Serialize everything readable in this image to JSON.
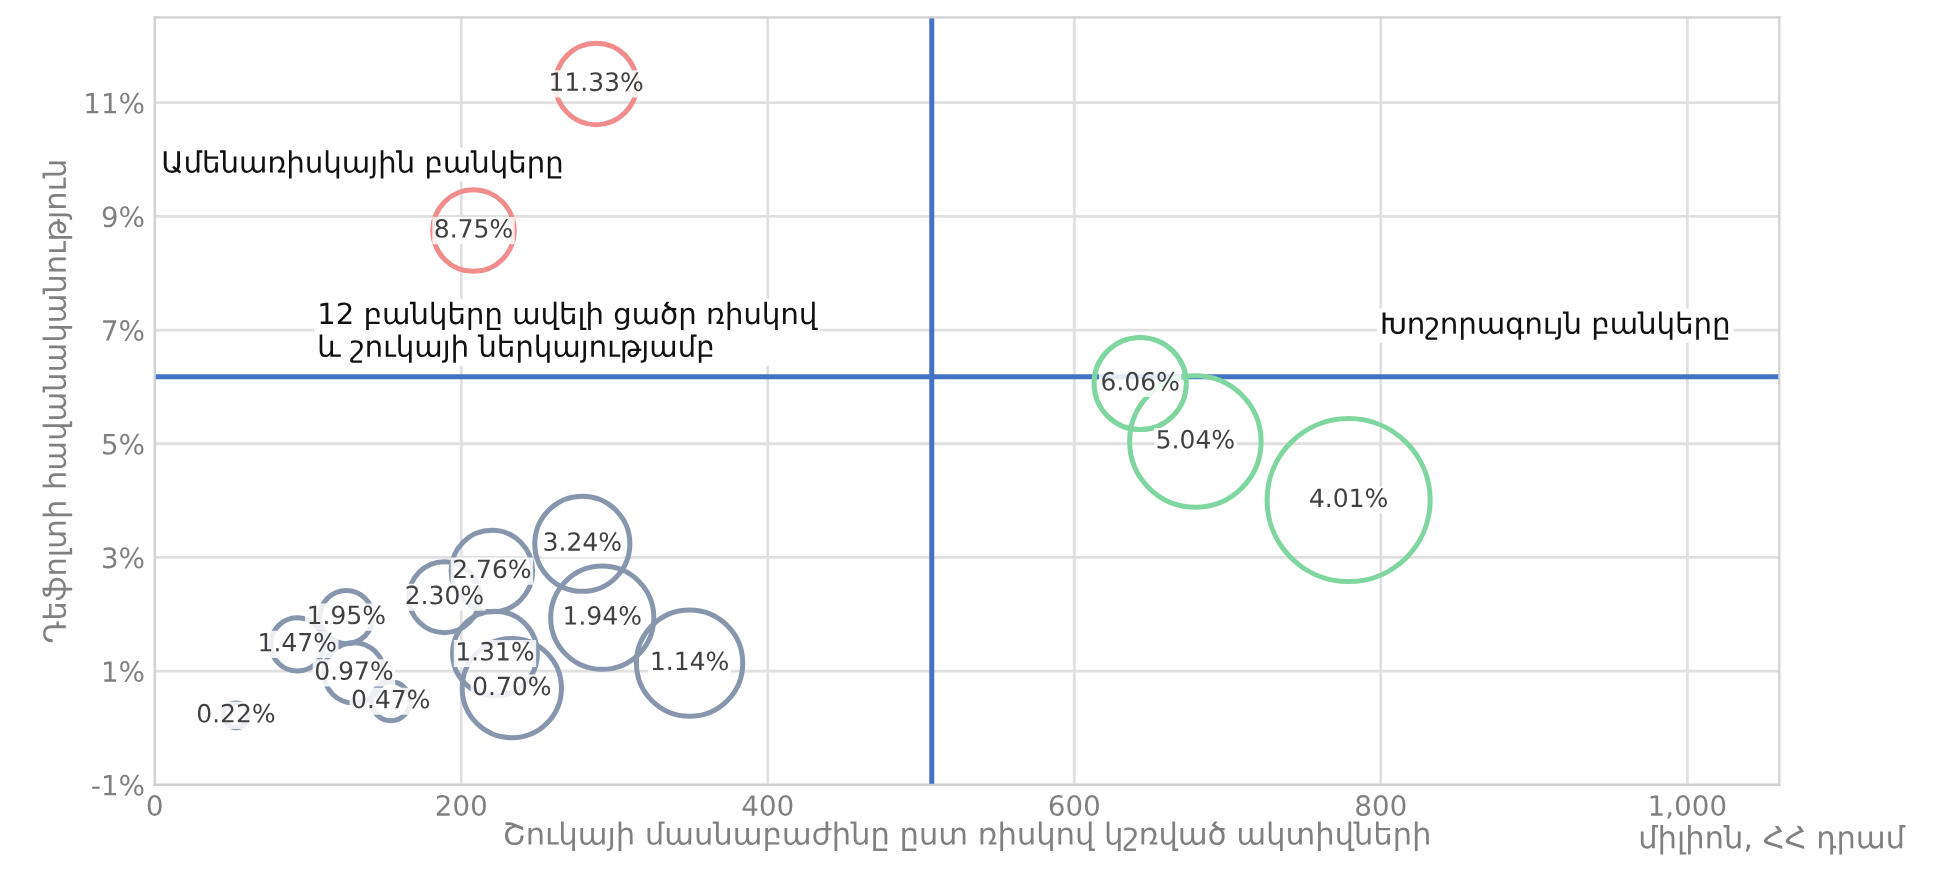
{
  "chart_data": {
    "type": "bubble",
    "xlabel": "Շուկայի մասնաբաժինը ըստ ռիսկով կշռված ակտիվների",
    "ylabel": "Դեֆոլտի հավանականություն",
    "series": [
      {
        "color": "#f08c8c",
        "x": [
          288,
          208
        ],
        "values": [
          11.33,
          8.75
        ],
        "sizes": [
          0.25,
          0.25
        ],
        "value_labels": [
          "11.33%",
          "8.75%"
        ]
      },
      {
        "color": "#7fd6a0",
        "x": [
          643,
          679,
          779
        ],
        "values": [
          6.06,
          5.04,
          4.01
        ],
        "sizes": [
          0.32,
          0.65,
          1
        ],
        "value_labels": [
          "6.06%",
          "5.04%",
          "4.01%"
        ]
      },
      {
        "color": "#8796ad",
        "x": [
          53,
          93,
          125,
          130,
          154,
          189,
          220,
          279,
          292,
          222,
          233,
          349
        ],
        "values": [
          0.22,
          1.47,
          1.95,
          0.97,
          0.47,
          2.3,
          2.76,
          3.24,
          1.94,
          1.31,
          0.7,
          1.14
        ],
        "sizes": [
          0.023,
          0.106,
          0.106,
          0.137,
          0.057,
          0.19,
          0.25,
          0.34,
          0.4,
          0.27,
          0.37,
          0.425
        ],
        "value_labels": [
          "0.22%",
          "1.47%",
          "1.95%",
          "0.97%",
          "0.47%",
          "2.30%",
          "2.76%",
          "3.24%",
          "1.94%",
          "1.31%",
          "0.70%",
          "1.14%"
        ]
      }
    ],
    "xlim": [
      0,
      1060
    ],
    "xticks": [
      0,
      200,
      400,
      600,
      800,
      {
        "value": 1000,
        "label": "1,000"
      }
    ],
    "ylim": [
      -1,
      12.5
    ],
    "yticks": [
      {
        "value": -1,
        "label": "-1%"
      },
      {
        "value": 1,
        "label": "1%"
      },
      {
        "value": 3,
        "label": "3%"
      },
      {
        "value": 5,
        "label": "5%"
      },
      {
        "value": 7,
        "label": "7%"
      },
      {
        "value": 9,
        "label": "9%"
      },
      {
        "value": 11,
        "label": "11%"
      }
    ],
    "ref_lines": [
      {
        "axis": "x",
        "value": 507,
        "color": "#4472c4"
      },
      {
        "axis": "y",
        "value": 6.18,
        "color": "#4472c4"
      }
    ],
    "annotations": [
      "Ամենառիսկային բանկերը",
      "12 բանկերը ավելի ցածր ռիսկով\nև շուկայի ներկայությամբ",
      "Խոշորագույն բանկերը",
      "միլիոն, ՀՀ դրամ"
    ],
    "grid": true,
    "legend": false
  }
}
